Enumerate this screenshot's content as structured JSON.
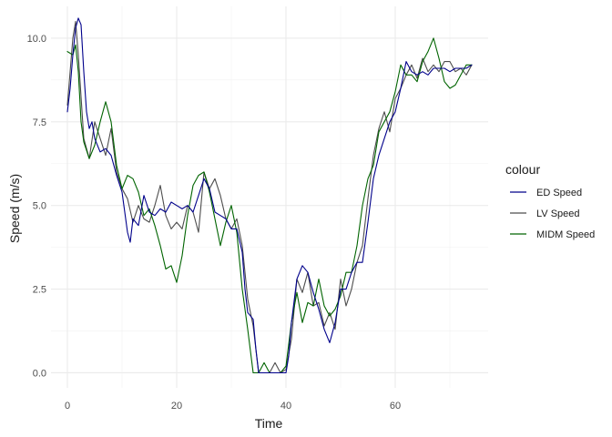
{
  "chart_data": {
    "type": "line",
    "title": "",
    "xlabel": "Time",
    "ylabel": "Speed (m/s)",
    "xlim": [
      -3,
      77
    ],
    "ylim": [
      -0.45,
      10.95
    ],
    "x_ticks": [
      0,
      20,
      40,
      60
    ],
    "x_tick_labels": [
      "0",
      "20",
      "40",
      "60"
    ],
    "y_ticks": [
      0,
      2.5,
      5,
      7.5,
      10
    ],
    "y_tick_labels": [
      "0.0",
      "2.5",
      "5.0",
      "7.5",
      "10.0"
    ],
    "grid": true,
    "legend_position": "right",
    "legend_title": "colour",
    "series": [
      {
        "name": "ED Speed",
        "color": "#00008b",
        "x": [
          0,
          0.5,
          1,
          1.5,
          2,
          2.5,
          3,
          3.5,
          4,
          4.5,
          5,
          6,
          7,
          8,
          9,
          10,
          11,
          11.5,
          12,
          13,
          14,
          15,
          16,
          17,
          18,
          19,
          20,
          21,
          22,
          23,
          24,
          25,
          26,
          27,
          28,
          29,
          30,
          31,
          32,
          32.5,
          33,
          34,
          34.5,
          35,
          36,
          37,
          38,
          39,
          40,
          40.5,
          41,
          42,
          43,
          44,
          45,
          46,
          47,
          48,
          49,
          50,
          51,
          52,
          53,
          54,
          55,
          56,
          57,
          58,
          59,
          60,
          61,
          62,
          63,
          64,
          65,
          66,
          67,
          68,
          69,
          70,
          71,
          72,
          73,
          74
        ],
        "y": [
          7.8,
          8.5,
          9.5,
          10.3,
          10.6,
          10.4,
          9.0,
          7.8,
          7.3,
          7.5,
          7.0,
          6.6,
          6.7,
          6.5,
          5.9,
          5.4,
          4.2,
          3.9,
          4.6,
          4.4,
          5.3,
          4.8,
          4.7,
          4.9,
          4.8,
          5.1,
          5.0,
          4.9,
          5.0,
          4.8,
          5.3,
          5.8,
          5.5,
          4.8,
          4.7,
          4.6,
          4.3,
          4.3,
          3.6,
          2.5,
          1.8,
          1.6,
          0.7,
          0.0,
          0.0,
          0.0,
          0.0,
          0.0,
          0.0,
          0.5,
          1.5,
          2.8,
          3.2,
          3.0,
          2.4,
          1.9,
          1.3,
          0.9,
          1.5,
          2.5,
          2.5,
          3.0,
          3.3,
          3.3,
          4.5,
          5.8,
          6.5,
          7.0,
          7.5,
          7.8,
          8.5,
          9.3,
          9.0,
          8.9,
          9.0,
          8.9,
          9.1,
          9.1,
          9.1,
          9.0,
          9.1,
          9.1,
          9.1,
          9.2
        ]
      },
      {
        "name": "LV Speed",
        "color": "#4d4d4d",
        "x": [
          0,
          1,
          1.5,
          2,
          3,
          4,
          5,
          6,
          7,
          8,
          9,
          10,
          11,
          12,
          13,
          14,
          15,
          16,
          17,
          18,
          19,
          20,
          21,
          22,
          23,
          24,
          25,
          26,
          27,
          28,
          29,
          30,
          31,
          32,
          33,
          34,
          35,
          36,
          37,
          38,
          39,
          40,
          41,
          42,
          43,
          44,
          45,
          46,
          47,
          48,
          49,
          50,
          51,
          52,
          53,
          54,
          55,
          56,
          57,
          58,
          59,
          60,
          61,
          62,
          63,
          64,
          65,
          66,
          67,
          68,
          69,
          70,
          71,
          72,
          73,
          74
        ],
        "y": [
          8.0,
          10.0,
          10.5,
          9.5,
          7.0,
          6.4,
          7.5,
          7.0,
          6.5,
          7.3,
          6.0,
          5.5,
          5.2,
          4.5,
          5.0,
          4.6,
          4.5,
          5.0,
          5.6,
          4.7,
          4.3,
          4.5,
          4.3,
          5.0,
          4.8,
          4.2,
          6.0,
          5.5,
          5.8,
          5.3,
          4.6,
          4.3,
          4.6,
          3.8,
          2.2,
          1.4,
          0.0,
          0.0,
          0.0,
          0.3,
          0.0,
          0.1,
          1.0,
          2.8,
          2.4,
          3.0,
          2.0,
          2.1,
          1.4,
          1.8,
          1.3,
          2.8,
          2.0,
          2.5,
          3.3,
          3.8,
          5.2,
          6.5,
          7.3,
          7.8,
          7.2,
          8.2,
          8.5,
          8.9,
          9.2,
          8.8,
          9.4,
          9.0,
          9.2,
          9.0,
          9.3,
          9.3,
          9.0,
          9.1,
          8.9,
          9.2
        ]
      },
      {
        "name": "MIDM Speed",
        "color": "#006400",
        "x": [
          0,
          1,
          1.5,
          2,
          2.5,
          3,
          4,
          5,
          6,
          7,
          8,
          9,
          10,
          11,
          12,
          13,
          14,
          15,
          16,
          17,
          18,
          19,
          20,
          21,
          22,
          23,
          24,
          25,
          26,
          27,
          28,
          29,
          30,
          31,
          32,
          33,
          34,
          35,
          36,
          37,
          38,
          39,
          40,
          41,
          42,
          43,
          44,
          45,
          46,
          47,
          48,
          49,
          50,
          51,
          52,
          53,
          54,
          55,
          56,
          57,
          58,
          59,
          60,
          61,
          62,
          63,
          64,
          65,
          66,
          67,
          68,
          69,
          70,
          71,
          72,
          73,
          74
        ],
        "y": [
          9.6,
          9.5,
          9.8,
          9.0,
          7.5,
          6.9,
          6.4,
          6.8,
          7.5,
          8.1,
          7.5,
          6.2,
          5.5,
          5.9,
          5.8,
          5.4,
          4.7,
          4.9,
          4.4,
          3.8,
          3.1,
          3.2,
          2.7,
          3.5,
          4.7,
          5.6,
          5.9,
          6.0,
          5.4,
          4.6,
          3.8,
          4.5,
          5.0,
          4.2,
          2.5,
          1.3,
          0.0,
          0.0,
          0.3,
          0.0,
          0.0,
          0.0,
          0.2,
          1.5,
          2.4,
          1.5,
          2.1,
          2.0,
          2.8,
          2.0,
          1.7,
          1.9,
          2.3,
          3.0,
          3.0,
          3.8,
          5.0,
          5.8,
          6.2,
          7.2,
          7.5,
          7.8,
          8.4,
          9.2,
          8.9,
          8.9,
          8.7,
          9.3,
          9.6,
          10.0,
          9.4,
          8.7,
          8.5,
          8.6,
          8.9,
          9.2,
          9.2
        ]
      }
    ]
  }
}
